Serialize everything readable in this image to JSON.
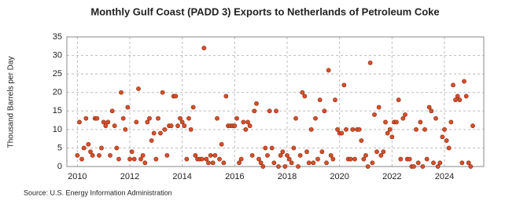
{
  "chart_data": {
    "type": "scatter",
    "title": "Monthly Gulf Coast (PADD 3) Exports to Netherlands of Petroleum Coke",
    "y_label": "Thousand Barrels per Day",
    "source": "Source: U.S. Energy Information Administration",
    "color": "#d4502a",
    "grid": true,
    "xlim": [
      2009.6,
      2025.5
    ],
    "xticks": [
      2010,
      2012,
      2014,
      2016,
      2018,
      2020,
      2022,
      2024
    ],
    "ylim": [
      0,
      35
    ],
    "yticks": [
      0,
      5,
      10,
      15,
      20,
      25,
      30,
      35
    ],
    "x": [
      2010.0,
      2010.08,
      2010.17,
      2010.25,
      2010.33,
      2010.42,
      2010.5,
      2010.58,
      2010.67,
      2010.75,
      2010.83,
      2010.92,
      2011.0,
      2011.08,
      2011.17,
      2011.25,
      2011.33,
      2011.42,
      2011.5,
      2011.58,
      2011.67,
      2011.75,
      2011.83,
      2011.92,
      2012.0,
      2012.08,
      2012.17,
      2012.25,
      2012.33,
      2012.42,
      2012.5,
      2012.58,
      2012.67,
      2012.75,
      2012.83,
      2012.92,
      2013.0,
      2013.08,
      2013.17,
      2013.25,
      2013.33,
      2013.42,
      2013.5,
      2013.58,
      2013.67,
      2013.75,
      2013.83,
      2013.92,
      2014.0,
      2014.08,
      2014.17,
      2014.25,
      2014.33,
      2014.42,
      2014.5,
      2014.58,
      2014.67,
      2014.75,
      2014.83,
      2014.92,
      2015.0,
      2015.08,
      2015.17,
      2015.25,
      2015.33,
      2015.42,
      2015.5,
      2015.58,
      2015.67,
      2015.75,
      2015.83,
      2015.92,
      2016.0,
      2016.08,
      2016.17,
      2016.25,
      2016.33,
      2016.42,
      2016.5,
      2016.58,
      2016.67,
      2016.75,
      2016.83,
      2016.92,
      2017.0,
      2017.08,
      2017.17,
      2017.25,
      2017.33,
      2017.42,
      2017.5,
      2017.58,
      2017.67,
      2017.75,
      2017.83,
      2017.92,
      2018.0,
      2018.08,
      2018.17,
      2018.25,
      2018.33,
      2018.42,
      2018.5,
      2018.58,
      2018.67,
      2018.75,
      2018.83,
      2018.92,
      2019.0,
      2019.08,
      2019.17,
      2019.25,
      2019.33,
      2019.42,
      2019.5,
      2019.58,
      2019.67,
      2019.75,
      2019.83,
      2019.92,
      2020.0,
      2020.08,
      2020.17,
      2020.25,
      2020.33,
      2020.42,
      2020.5,
      2020.58,
      2020.67,
      2020.75,
      2020.83,
      2020.92,
      2021.0,
      2021.08,
      2021.17,
      2021.25,
      2021.33,
      2021.42,
      2021.5,
      2021.58,
      2021.67,
      2021.75,
      2021.83,
      2021.92,
      2022.0,
      2022.08,
      2022.17,
      2022.25,
      2022.33,
      2022.42,
      2022.5,
      2022.58,
      2022.67,
      2022.75,
      2022.83,
      2022.92,
      2023.0,
      2023.08,
      2023.17,
      2023.25,
      2023.33,
      2023.42,
      2023.5,
      2023.58,
      2023.67,
      2023.75,
      2023.83,
      2023.92,
      2024.0,
      2024.08,
      2024.17,
      2024.25,
      2024.33,
      2024.42,
      2024.5,
      2024.58,
      2024.67,
      2024.75,
      2024.83,
      2024.92,
      2025.0,
      2025.08
    ],
    "values": [
      3,
      12,
      2,
      5,
      13,
      6,
      4,
      3,
      13,
      13,
      3,
      5,
      12,
      11,
      12,
      3,
      15,
      11,
      5,
      2,
      20,
      13,
      10,
      16,
      2,
      4,
      2,
      12,
      21,
      2,
      3,
      1,
      12,
      13,
      7,
      9,
      2,
      13,
      9,
      20,
      10,
      3,
      11,
      11,
      19,
      19,
      11,
      13,
      12,
      11,
      2,
      13,
      10,
      16,
      3,
      2,
      2,
      2,
      32,
      2,
      1,
      3,
      1,
      3,
      13,
      2,
      6,
      1,
      19,
      11,
      11,
      11,
      11,
      13,
      1,
      2,
      12,
      10,
      12,
      11,
      3,
      15,
      17,
      2,
      1,
      0,
      5,
      3,
      15,
      5,
      1,
      15,
      0,
      3,
      4,
      0,
      3,
      2,
      1,
      5,
      13,
      0,
      3,
      20,
      19,
      4,
      1,
      10,
      1,
      13,
      2,
      18,
      4,
      15,
      1,
      26,
      3,
      2,
      18,
      10,
      9,
      9,
      22,
      10,
      2,
      2,
      10,
      2,
      10,
      10,
      7,
      2,
      3,
      0,
      28,
      1,
      14,
      4,
      16,
      3,
      4,
      12,
      9,
      10,
      8,
      12,
      12,
      18,
      2,
      13,
      14,
      2,
      2,
      0,
      0,
      10,
      1,
      12,
      0,
      10,
      2,
      16,
      15,
      1,
      13,
      0,
      1,
      8,
      10,
      7,
      5,
      12,
      22,
      18,
      19,
      18,
      1,
      23,
      19,
      1,
      0,
      11
    ]
  }
}
